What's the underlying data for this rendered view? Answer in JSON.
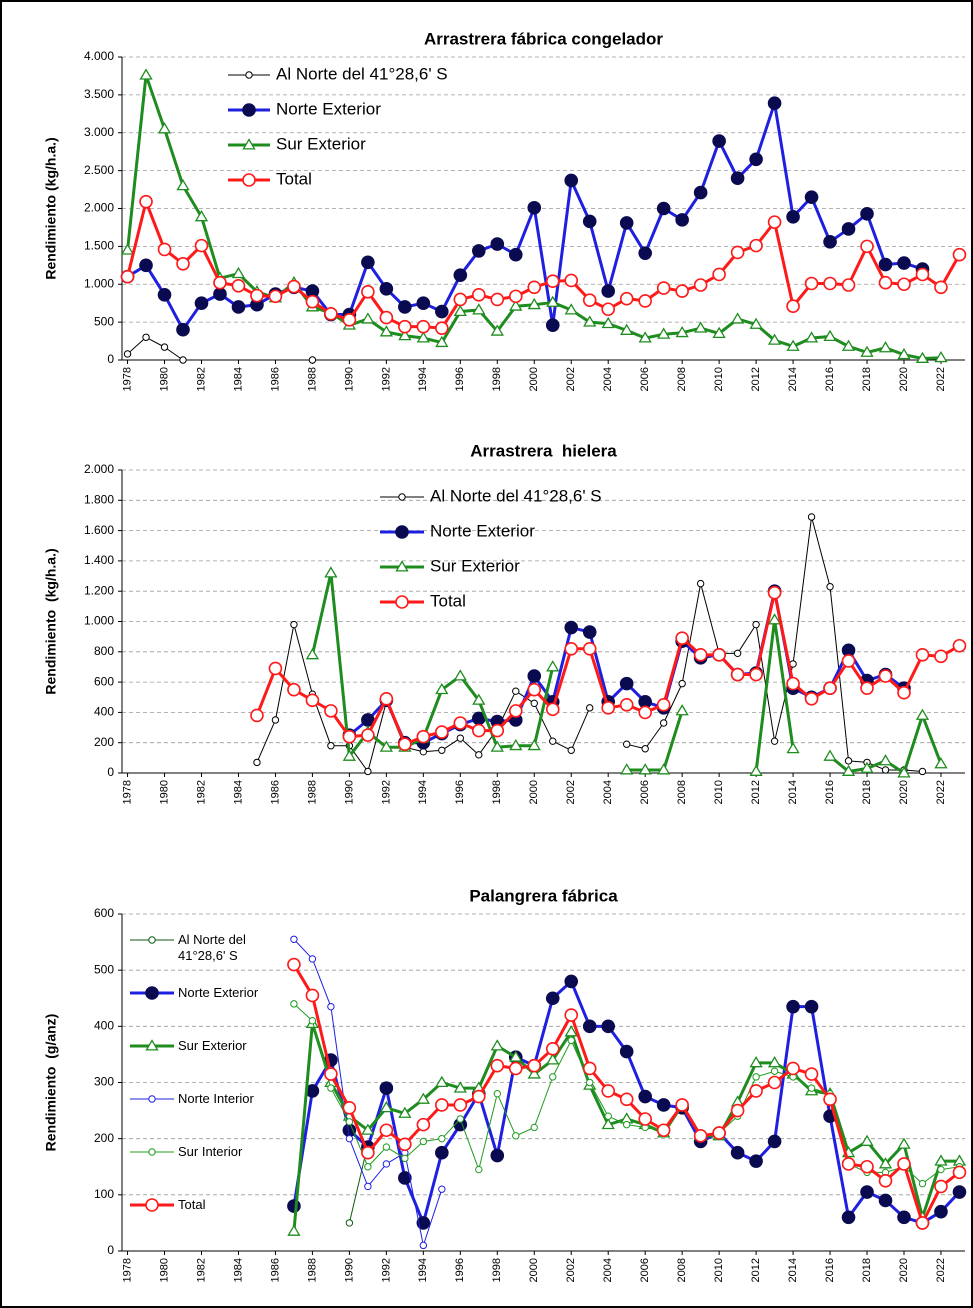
{
  "chart_data": [
    {
      "type": "line",
      "title": "Arrastrera fábrica congelador",
      "y_label": "Rendimiento (kg/h.a.)",
      "legend": "upper left",
      "grid": true,
      "xlim": [
        1977.7,
        2023.3
      ],
      "xticks": [
        1978,
        1980,
        1982,
        1984,
        1986,
        1988,
        1990,
        1992,
        1994,
        1996,
        1998,
        2000,
        2002,
        2004,
        2006,
        2008,
        2010,
        2012,
        2014,
        2016,
        2018,
        2020,
        2022
      ],
      "ylim": [
        0,
        4000
      ],
      "yticks": [
        0,
        500,
        {
          "value": 1000,
          "label": "1.000"
        },
        {
          "value": 1500,
          "label": "1.500"
        },
        {
          "value": 2000,
          "label": "2.000"
        },
        {
          "value": 2500,
          "label": "2.500"
        },
        {
          "value": 3000,
          "label": "3.000"
        },
        {
          "value": 3500,
          "label": "3.500"
        },
        {
          "value": 4000,
          "label": "4.000"
        }
      ],
      "x": [
        1978,
        1979,
        1980,
        1981,
        1982,
        1983,
        1984,
        1985,
        1986,
        1987,
        1988,
        1989,
        1990,
        1991,
        1992,
        1993,
        1994,
        1995,
        1996,
        1997,
        1998,
        1999,
        2000,
        2001,
        2002,
        2003,
        2004,
        2005,
        2006,
        2007,
        2008,
        2009,
        2010,
        2011,
        2012,
        2013,
        2014,
        2015,
        2016,
        2017,
        2018,
        2019,
        2020,
        2021,
        2022,
        2023
      ],
      "series": [
        {
          "name": "Al Norte del 41°28,6' S",
          "color": "#000000",
          "marker": "circle-open",
          "width": 1,
          "values": [
            80,
            300,
            170,
            0,
            null,
            null,
            null,
            null,
            null,
            null,
            0,
            null,
            null,
            null,
            null,
            null,
            null,
            null,
            null,
            null,
            null,
            null,
            null,
            null,
            null,
            null,
            null,
            null,
            null,
            null,
            null,
            null,
            null,
            null,
            null,
            null,
            null,
            null,
            null,
            null,
            null,
            null,
            null,
            null,
            null,
            null
          ]
        },
        {
          "name": "Norte Exterior",
          "color": "#1f1fe0",
          "marker": "circle-filled",
          "width": 3,
          "values": [
            1100,
            1250,
            860,
            400,
            750,
            870,
            700,
            730,
            870,
            960,
            910,
            600,
            600,
            1290,
            940,
            700,
            750,
            640,
            1120,
            1440,
            1530,
            1390,
            2010,
            460,
            2370,
            1830,
            910,
            1810,
            1410,
            2000,
            1850,
            2210,
            2890,
            2400,
            2650,
            3390,
            1890,
            2150,
            1560,
            1730,
            1930,
            1260,
            1280,
            1200,
            null,
            null
          ]
        },
        {
          "name": "Sur Exterior",
          "color": "#1e8c1e",
          "marker": "triangle-open",
          "width": 3,
          "values": [
            1450,
            3760,
            3050,
            2300,
            1890,
            1080,
            1140,
            900,
            820,
            1020,
            700,
            620,
            460,
            540,
            370,
            320,
            290,
            230,
            640,
            660,
            380,
            710,
            730,
            760,
            660,
            500,
            480,
            390,
            290,
            340,
            360,
            420,
            350,
            540,
            470,
            260,
            180,
            290,
            310,
            180,
            100,
            160,
            70,
            20,
            30,
            null
          ]
        },
        {
          "name": "Total",
          "color": "#ff1a1a",
          "marker": "circle-open",
          "width": 3,
          "values": [
            1100,
            2090,
            1460,
            1270,
            1510,
            1020,
            980,
            850,
            840,
            970,
            770,
            610,
            530,
            900,
            560,
            440,
            440,
            420,
            800,
            860,
            800,
            840,
            960,
            1040,
            1050,
            790,
            670,
            810,
            780,
            950,
            910,
            990,
            1130,
            1420,
            1510,
            1820,
            710,
            1010,
            1010,
            990,
            1500,
            1020,
            1000,
            1130,
            960,
            1390
          ]
        }
      ]
    },
    {
      "type": "line",
      "title": "Arrastrera  hielera",
      "y_label": "Rendimiento  (kg/h.a.)",
      "legend": "upper center",
      "grid": true,
      "xlim": [
        1977.7,
        2023.3
      ],
      "xticks": [
        1978,
        1980,
        1982,
        1984,
        1986,
        1988,
        1990,
        1992,
        1994,
        1996,
        1998,
        2000,
        2002,
        2004,
        2006,
        2008,
        2010,
        2012,
        2014,
        2016,
        2018,
        2020,
        2022
      ],
      "ylim": [
        0,
        2000
      ],
      "yticks": [
        0,
        200,
        400,
        600,
        800,
        {
          "value": 1000,
          "label": "1.000"
        },
        {
          "value": 1200,
          "label": "1.200"
        },
        {
          "value": 1400,
          "label": "1.400"
        },
        {
          "value": 1600,
          "label": "1.600"
        },
        {
          "value": 1800,
          "label": "1.800"
        },
        {
          "value": 2000,
          "label": "2.000"
        }
      ],
      "x": [
        1985,
        1986,
        1987,
        1988,
        1989,
        1990,
        1991,
        1992,
        1993,
        1994,
        1995,
        1996,
        1997,
        1998,
        1999,
        2000,
        2001,
        2002,
        2003,
        2004,
        2005,
        2006,
        2007,
        2008,
        2009,
        2010,
        2011,
        2012,
        2013,
        2014,
        2015,
        2016,
        2017,
        2018,
        2019,
        2020,
        2021,
        2022,
        2023
      ],
      "series": [
        {
          "name": "Al Norte del 41°28,6' S",
          "color": "#000000",
          "marker": "circle-open",
          "width": 1,
          "values": [
            70,
            350,
            980,
            520,
            180,
            180,
            10,
            470,
            170,
            140,
            150,
            230,
            120,
            290,
            540,
            460,
            210,
            150,
            430,
            null,
            190,
            160,
            330,
            590,
            1250,
            790,
            790,
            980,
            210,
            720,
            1690,
            1230,
            80,
            70,
            20,
            20,
            10,
            null,
            null
          ]
        },
        {
          "name": "Norte Exterior",
          "color": "#1f1fe0",
          "marker": "circle-filled",
          "width": 3,
          "values": [
            null,
            null,
            null,
            null,
            null,
            250,
            350,
            480,
            200,
            200,
            260,
            320,
            360,
            340,
            350,
            640,
            470,
            960,
            930,
            470,
            590,
            470,
            430,
            870,
            760,
            780,
            650,
            660,
            1200,
            560,
            500,
            560,
            810,
            610,
            650,
            560,
            null,
            null,
            null
          ]
        },
        {
          "name": "Sur Exterior",
          "color": "#1e8c1e",
          "marker": "triangle-open",
          "width": 3,
          "values": [
            null,
            null,
            null,
            780,
            1320,
            110,
            270,
            170,
            170,
            230,
            550,
            640,
            480,
            170,
            180,
            180,
            700,
            null,
            null,
            null,
            20,
            20,
            20,
            410,
            null,
            null,
            null,
            10,
            1010,
            160,
            null,
            110,
            10,
            30,
            80,
            0,
            380,
            60,
            null
          ]
        },
        {
          "name": "Total",
          "color": "#ff1a1a",
          "marker": "circle-open",
          "width": 3,
          "values": [
            380,
            690,
            550,
            480,
            410,
            240,
            250,
            490,
            190,
            240,
            270,
            330,
            280,
            280,
            410,
            550,
            420,
            820,
            820,
            430,
            450,
            400,
            450,
            890,
            780,
            780,
            650,
            650,
            1190,
            590,
            490,
            560,
            740,
            560,
            640,
            530,
            780,
            770,
            840
          ]
        }
      ]
    },
    {
      "type": "line",
      "title": "Palangrera fábrica",
      "y_label": "Rendimiento  (g/anz)",
      "legend": "left",
      "grid": true,
      "xlim": [
        1977.7,
        2023.3
      ],
      "xticks": [
        1978,
        1980,
        1982,
        1984,
        1986,
        1988,
        1990,
        1992,
        1994,
        1996,
        1998,
        2000,
        2002,
        2004,
        2006,
        2008,
        2010,
        2012,
        2014,
        2016,
        2018,
        2020,
        2022
      ],
      "ylim": [
        0,
        600
      ],
      "yticks": [
        0,
        100,
        200,
        300,
        400,
        500,
        600
      ],
      "x": [
        1987,
        1988,
        1989,
        1990,
        1991,
        1992,
        1993,
        1994,
        1995,
        1996,
        1997,
        1998,
        1999,
        2000,
        2001,
        2002,
        2003,
        2004,
        2005,
        2006,
        2007,
        2008,
        2009,
        2010,
        2011,
        2012,
        2013,
        2014,
        2015,
        2016,
        2017,
        2018,
        2019,
        2020,
        2021,
        2022,
        2023
      ],
      "series": [
        {
          "name": "Al Norte del 41°28,6' S",
          "color": "#0f5a0f",
          "marker": "circle-open",
          "width": 1,
          "values": [
            null,
            null,
            null,
            50,
            190,
            null,
            null,
            null,
            null,
            null,
            null,
            null,
            null,
            null,
            null,
            null,
            null,
            null,
            null,
            null,
            null,
            null,
            null,
            null,
            null,
            null,
            null,
            null,
            null,
            null,
            null,
            null,
            null,
            null,
            null,
            null,
            null
          ]
        },
        {
          "name": "Norte Exterior",
          "color": "#1f1fe0",
          "marker": "circle-filled",
          "width": 3,
          "values": [
            80,
            285,
            340,
            215,
            185,
            290,
            130,
            50,
            175,
            225,
            280,
            170,
            345,
            330,
            450,
            480,
            400,
            400,
            355,
            275,
            260,
            255,
            195,
            210,
            175,
            160,
            195,
            435,
            435,
            240,
            60,
            105,
            90,
            60,
            50,
            70,
            105
          ]
        },
        {
          "name": "Sur Exterior",
          "color": "#1e8c1e",
          "marker": "triangle-open",
          "width": 3,
          "values": [
            35,
            405,
            300,
            240,
            215,
            255,
            245,
            270,
            300,
            290,
            290,
            365,
            345,
            315,
            340,
            390,
            295,
            225,
            235,
            225,
            210,
            260,
            205,
            205,
            265,
            335,
            335,
            315,
            285,
            280,
            175,
            195,
            155,
            190,
            60,
            160,
            160
          ]
        },
        {
          "name": "Norte Interior",
          "color": "#1f1fe0",
          "marker": "circle-open",
          "width": 1,
          "values": [
            555,
            520,
            435,
            200,
            115,
            155,
            175,
            10,
            110,
            null,
            null,
            null,
            null,
            null,
            null,
            null,
            null,
            null,
            null,
            null,
            null,
            null,
            null,
            null,
            null,
            null,
            null,
            null,
            null,
            null,
            null,
            null,
            null,
            null,
            null,
            null,
            null
          ]
        },
        {
          "name": "Sur Interior",
          "color": "#1e9c1e",
          "marker": "circle-open",
          "width": 1,
          "values": [
            440,
            410,
            290,
            230,
            150,
            185,
            165,
            195,
            200,
            235,
            145,
            280,
            205,
            220,
            310,
            375,
            300,
            240,
            225,
            220,
            215,
            255,
            205,
            210,
            240,
            310,
            320,
            310,
            290,
            280,
            155,
            140,
            140,
            150,
            120,
            145,
            150
          ]
        },
        {
          "name": "Total",
          "color": "#ff1a1a",
          "marker": "circle-open",
          "width": 3,
          "values": [
            510,
            455,
            315,
            255,
            175,
            215,
            190,
            225,
            260,
            260,
            275,
            330,
            325,
            330,
            360,
            420,
            325,
            285,
            270,
            235,
            215,
            260,
            205,
            210,
            250,
            285,
            300,
            325,
            315,
            270,
            155,
            150,
            125,
            155,
            50,
            115,
            140
          ]
        }
      ]
    }
  ]
}
